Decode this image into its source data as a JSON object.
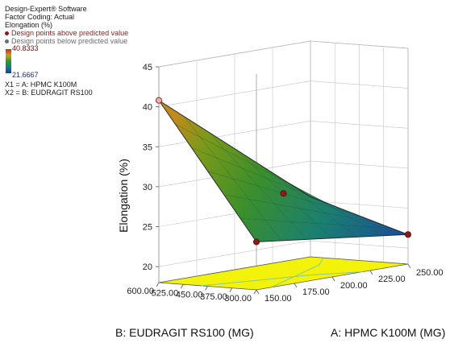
{
  "info_panel": {
    "software": "Design-Expert® Software",
    "factor_coding": "Factor Coding: Actual",
    "response": "Elongation (%)",
    "legend_above": "Design points above predicted value",
    "legend_below": "Design points below predicted value",
    "legend_above_color": "#8b1a1a",
    "legend_below_color": "#6b6b6b",
    "color_max": "40.8333",
    "color_min": "21.6667",
    "x1": "X1 = A: HPMC K100M",
    "x2": "X2 = B: EUDRAGIT RS100"
  },
  "chart_data": {
    "type": "surface3d",
    "zlabel": "Elongation (%)",
    "xlabel": "A: HPMC K100M (MG)",
    "ylabel": "B: EUDRAGIT RS100 (MG)",
    "z_ticks": [
      "20",
      "25",
      "30",
      "35",
      "40",
      "45"
    ],
    "x_ticks": [
      "150.00",
      "175.00",
      "200.00",
      "225.00",
      "250.00"
    ],
    "y_ticks": [
      "300.00",
      "375.00",
      "450.00",
      "525.00",
      "600.00"
    ],
    "zlim": [
      18,
      45
    ],
    "xlim": [
      150,
      250
    ],
    "ylim": [
      300,
      600
    ],
    "surface_corners": {
      "A150_B300": 24.0,
      "A250_B300": 21.7,
      "A150_B600": 40.8,
      "A250_B600": 25.5
    },
    "design_points": [
      {
        "a": 150,
        "b": 600,
        "z": 40.8,
        "kind": "below"
      },
      {
        "a": 250,
        "b": 300,
        "z": 21.7,
        "kind": "above"
      },
      {
        "a": 200,
        "b": 450,
        "z": 28.0,
        "kind": "above"
      },
      {
        "a": 150,
        "b": 300,
        "z": 24.0,
        "kind": "above"
      }
    ],
    "contour_floor_color": "#f2f20a",
    "grid": true
  }
}
